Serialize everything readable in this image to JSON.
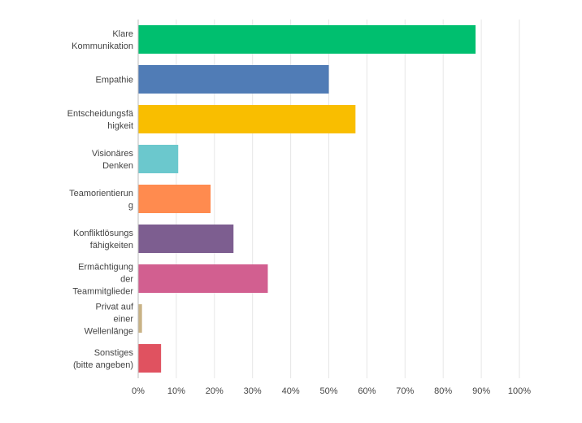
{
  "chart_data": {
    "type": "bar",
    "orientation": "horizontal",
    "categories": [
      [
        "Klare",
        "Kommunikation"
      ],
      [
        "Empathie"
      ],
      [
        "Entscheidungsfä",
        "higkeit"
      ],
      [
        "Visionäres",
        "Denken"
      ],
      [
        "Teamorientierun",
        "g"
      ],
      [
        "Konfliktlösungs",
        "fähigkeiten"
      ],
      [
        "Ermächtigung",
        "der",
        "Teammitglieder"
      ],
      [
        "Privat auf",
        "einer",
        "Wellenlänge"
      ],
      [
        "Sonstiges",
        "(bitte angeben)"
      ]
    ],
    "values": [
      88.5,
      50,
      57,
      10.5,
      19,
      25,
      34,
      1,
      6
    ],
    "colors": [
      "#00bf6f",
      "#507cb6",
      "#f9be00",
      "#6bc8cd",
      "#ff8b4f",
      "#7d5e90",
      "#d25f90",
      "#c9b386",
      "#e05260"
    ],
    "xlim": [
      0,
      100
    ],
    "xticks": [
      0,
      10,
      20,
      30,
      40,
      50,
      60,
      70,
      80,
      90,
      100
    ],
    "tick_suffix": "%",
    "title": "",
    "xlabel": "",
    "ylabel": "",
    "grid": true,
    "legend": "none"
  }
}
